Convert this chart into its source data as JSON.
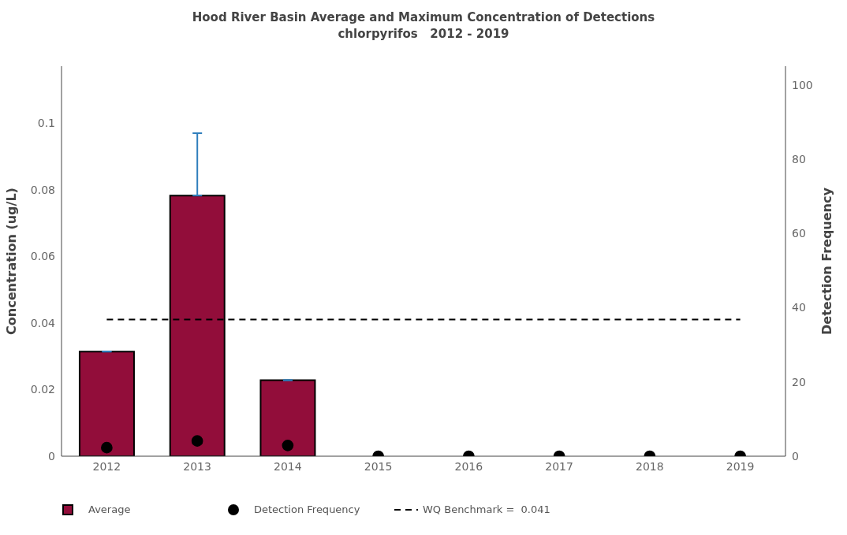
{
  "chart_data": {
    "type": "bar",
    "title": "Hood River Basin Average and Maximum Concentration of Detections",
    "subtitle": "chlorpyrifos   2012 - 2019",
    "ylabel": "Concentration (ug/L)",
    "y2label": "Detection Frequency",
    "categories": [
      "2012",
      "2013",
      "2014",
      "2015",
      "2016",
      "2017",
      "2018",
      "2019"
    ],
    "series": [
      {
        "name": "Average",
        "color": "#920d3a",
        "values": [
          0.0314,
          0.0782,
          0.0228,
          null,
          null,
          null,
          null,
          null
        ],
        "errors": [
          [
            0.0314,
            0.0314
          ],
          [
            0.0782,
            0.0969
          ],
          [
            0.0228,
            0.0228
          ],
          null,
          null,
          null,
          null,
          null
        ]
      },
      {
        "name": "Detection Frequency",
        "type": "scatter",
        "axis": "y2",
        "color": "#000000",
        "marker": "circle",
        "values": [
          2.3,
          4.1,
          2.9,
          0,
          0,
          0,
          0,
          0
        ]
      }
    ],
    "ref_lines": [
      {
        "axis": "y",
        "value": 0.041,
        "label": "WQ Benchmark =  0.041",
        "color": "#000000",
        "line_style": "dashed"
      }
    ],
    "ylim": [
      0,
      0.117
    ],
    "yticks": [
      0,
      0.02,
      0.04,
      0.06,
      0.08,
      0.1
    ],
    "y2lim": [
      0,
      105
    ],
    "y2ticks": [
      0,
      20,
      40,
      60,
      80,
      100
    ],
    "grid": false,
    "legend": "bottom"
  }
}
